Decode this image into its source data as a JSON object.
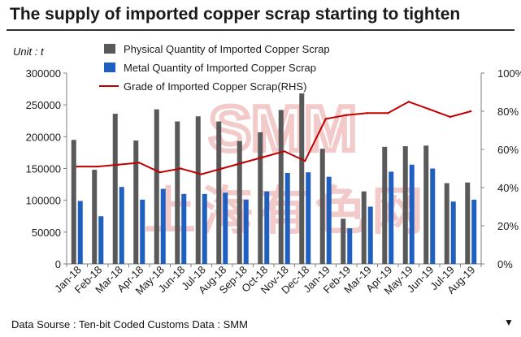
{
  "title": "The supply of imported copper scrap starting to tighten",
  "unit_label": "Unit : t",
  "source": "Data Sourse : Ten-bit Coded Customs Data : SMM",
  "corner_mark": "▼",
  "watermark": {
    "logo_text": "SMM",
    "chinese_text": "上海有色网",
    "color": "#e8a0a0"
  },
  "colors": {
    "physical": "#595959",
    "metal": "#1f5fbf",
    "grade": "#c00000",
    "axis": "#7f7f7f"
  },
  "chart_data": {
    "type": "bar",
    "categories": [
      "Jan-18",
      "Feb-18",
      "Mar-18",
      "Apr-18",
      "May-18",
      "Jun-18",
      "Jul-18",
      "Aug-18",
      "Sep-18",
      "Oct-18",
      "Nov-18",
      "Dec-18",
      "Jan-19",
      "Feb-19",
      "Mar-19",
      "Apr-19",
      "May-19",
      "Jun-19",
      "Jul-19",
      "Aug-19"
    ],
    "series": [
      {
        "name": "Physical Quantity of Imported Copper Scrap",
        "type": "bar",
        "axis": "left",
        "values": [
          195000,
          148000,
          236000,
          194000,
          243000,
          224000,
          232000,
          224000,
          193000,
          207000,
          242000,
          268000,
          181000,
          71000,
          114000,
          184000,
          185000,
          186000,
          127000,
          128000
        ]
      },
      {
        "name": "Metal Quantity of Imported Copper Scrap",
        "type": "bar",
        "axis": "left",
        "values": [
          99000,
          75000,
          121000,
          101000,
          118000,
          110000,
          110000,
          112000,
          101000,
          114000,
          143000,
          144000,
          137000,
          56000,
          90000,
          145000,
          156000,
          150000,
          98000,
          101000
        ]
      },
      {
        "name": "Grade of Imported Copper Scrap(RHS)",
        "type": "line",
        "axis": "right",
        "values": [
          0.51,
          0.51,
          0.52,
          0.53,
          0.48,
          0.5,
          0.47,
          0.5,
          0.53,
          0.56,
          0.59,
          0.54,
          0.76,
          0.78,
          0.79,
          0.79,
          0.85,
          0.81,
          0.77,
          0.8
        ]
      }
    ],
    "y_left": {
      "min": 0,
      "max": 300000,
      "ticks": [
        0,
        50000,
        100000,
        150000,
        200000,
        250000,
        300000
      ],
      "tick_labels": [
        "0",
        "50000",
        "100000",
        "150000",
        "200000",
        "250000",
        "300000"
      ]
    },
    "y_right": {
      "min": 0,
      "max": 1,
      "ticks": [
        0,
        0.2,
        0.4,
        0.6,
        0.8,
        1.0
      ],
      "tick_labels": [
        "0%",
        "20%",
        "40%",
        "60%",
        "80%",
        "100%"
      ]
    },
    "grid": false,
    "legend_position": "top-center"
  }
}
